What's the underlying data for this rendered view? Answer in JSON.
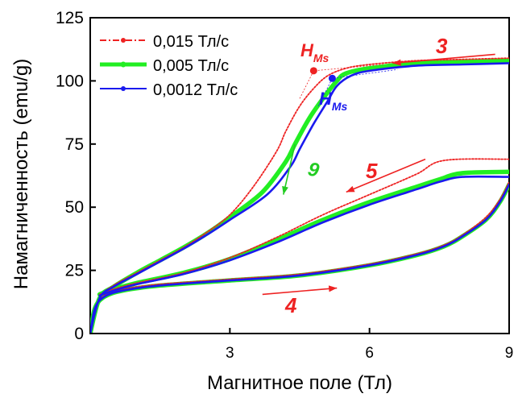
{
  "chart_data": {
    "type": "line",
    "title": "",
    "xlabel": "Магнитное поле (Тл)",
    "ylabel": "Намагниченность (emu/g)",
    "xlim": [
      0,
      9
    ],
    "ylim": [
      0,
      125
    ],
    "xticks": [
      3,
      6,
      9
    ],
    "yticks": [
      0,
      25,
      50,
      75,
      100,
      125
    ],
    "xtick_labels": [
      "3",
      "6",
      "9"
    ],
    "ytick_labels": [
      "0",
      "25",
      "50",
      "75",
      "100",
      "125"
    ],
    "grid": false,
    "legend_position": "top-left",
    "series": [
      {
        "name": "0,015 Тл/с",
        "color": "#ee2222",
        "style": "dash-dot",
        "branches": [
          {
            "label": "ascending",
            "points": [
              [
                0,
                0
              ],
              [
                0.1,
                10
              ],
              [
                0.3,
                15
              ],
              [
                0.7,
                17.5
              ],
              [
                1.5,
                19.5
              ],
              [
                3,
                21.5
              ],
              [
                4.5,
                23.5
              ],
              [
                6,
                27.5
              ],
              [
                7,
                31.5
              ],
              [
                7.6,
                35
              ],
              [
                8,
                39
              ],
              [
                8.5,
                46
              ],
              [
                8.8,
                53
              ],
              [
                9,
                60
              ]
            ]
          },
          {
            "label": "descending-upper",
            "points": [
              [
                9,
                109
              ],
              [
                8,
                108.5
              ],
              [
                7,
                108
              ],
              [
                6,
                106.5
              ],
              [
                5.5,
                105
              ],
              [
                5.1,
                102
              ],
              [
                4.8,
                97
              ],
              [
                4.5,
                90
              ],
              [
                4.2,
                80
              ],
              [
                4,
                72
              ],
              [
                3.5,
                58
              ],
              [
                3,
                47
              ],
              [
                2.5,
                40
              ],
              [
                2,
                34
              ],
              [
                1.5,
                29
              ],
              [
                1,
                24
              ],
              [
                0.5,
                19
              ],
              [
                0.2,
                14
              ],
              [
                0,
                0
              ]
            ]
          },
          {
            "label": "descending-lower",
            "points": [
              [
                9,
                69
              ],
              [
                7.6,
                68.5
              ],
              [
                7,
                63
              ],
              [
                6,
                55
              ],
              [
                5,
                47
              ],
              [
                4,
                38
              ],
              [
                3,
                30
              ],
              [
                2,
                24
              ],
              [
                1,
                20
              ],
              [
                0.5,
                17.5
              ],
              [
                0.2,
                15.5
              ]
            ]
          }
        ]
      },
      {
        "name": "0,005 Тл/с",
        "color": "#22ee22",
        "style": "thick-dotted",
        "branches": [
          {
            "label": "ascending",
            "points": [
              [
                0,
                0
              ],
              [
                0.1,
                10
              ],
              [
                0.3,
                14.5
              ],
              [
                0.7,
                17
              ],
              [
                1.5,
                19
              ],
              [
                3,
                21
              ],
              [
                4.5,
                23
              ],
              [
                6,
                27
              ],
              [
                7,
                31
              ],
              [
                7.6,
                34.5
              ],
              [
                8,
                38.5
              ],
              [
                8.5,
                45
              ],
              [
                8.8,
                52
              ],
              [
                9,
                59
              ]
            ]
          },
          {
            "label": "descending-upper",
            "points": [
              [
                9,
                108
              ],
              [
                8,
                107.5
              ],
              [
                7,
                107
              ],
              [
                6,
                105
              ],
              [
                5.5,
                103
              ],
              [
                5.3,
                100
              ],
              [
                5,
                93
              ],
              [
                4.7,
                85
              ],
              [
                4.4,
                75
              ],
              [
                4.2,
                68
              ],
              [
                3.7,
                56
              ],
              [
                3,
                46
              ],
              [
                2.5,
                39.5
              ],
              [
                2,
                34
              ],
              [
                1.5,
                29
              ],
              [
                1,
                24
              ],
              [
                0.5,
                18.5
              ],
              [
                0.2,
                14
              ],
              [
                0,
                0
              ]
            ]
          },
          {
            "label": "descending-lower",
            "points": [
              [
                9,
                64
              ],
              [
                8,
                63.5
              ],
              [
                7.5,
                61
              ],
              [
                7,
                58
              ],
              [
                6,
                52
              ],
              [
                5,
                45
              ],
              [
                4,
                37
              ],
              [
                3,
                29.5
              ],
              [
                2,
                24
              ],
              [
                1,
                20
              ],
              [
                0.5,
                17.5
              ],
              [
                0.2,
                15.5
              ]
            ]
          }
        ]
      },
      {
        "name": "0,0012 Тл/с",
        "color": "#1a1aee",
        "style": "dotted-line",
        "branches": [
          {
            "label": "ascending",
            "points": [
              [
                0,
                0
              ],
              [
                0.1,
                10
              ],
              [
                0.3,
                14.5
              ],
              [
                0.7,
                17
              ],
              [
                1.5,
                19
              ],
              [
                3,
                21
              ],
              [
                4.5,
                23
              ],
              [
                6,
                27
              ],
              [
                7,
                31
              ],
              [
                7.6,
                34.5
              ],
              [
                8,
                38.5
              ],
              [
                8.5,
                45
              ],
              [
                8.8,
                52
              ],
              [
                9,
                59
              ]
            ]
          },
          {
            "label": "descending-upper",
            "points": [
              [
                9,
                107
              ],
              [
                8,
                106.5
              ],
              [
                7,
                106
              ],
              [
                6,
                104
              ],
              [
                5.6,
                102
              ],
              [
                5.3,
                98
              ],
              [
                5.1,
                92
              ],
              [
                4.8,
                83
              ],
              [
                4.5,
                73
              ],
              [
                4.3,
                66
              ],
              [
                3.8,
                55
              ],
              [
                3,
                45
              ],
              [
                2.5,
                39
              ],
              [
                2,
                33.5
              ],
              [
                1.5,
                28.5
              ],
              [
                1,
                23.5
              ],
              [
                0.5,
                18.5
              ],
              [
                0.2,
                14
              ],
              [
                0,
                0
              ]
            ]
          },
          {
            "label": "descending-lower",
            "points": [
              [
                9,
                62
              ],
              [
                8,
                62
              ],
              [
                7.5,
                60
              ],
              [
                7,
                57
              ],
              [
                6,
                51
              ],
              [
                5,
                44
              ],
              [
                4,
                36
              ],
              [
                3,
                29
              ],
              [
                2,
                23.5
              ],
              [
                1,
                19.5
              ],
              [
                0.5,
                17
              ],
              [
                0.2,
                15
              ]
            ]
          }
        ]
      }
    ],
    "annotations": [
      {
        "text": "3",
        "color": "#ee2222"
      },
      {
        "text": "5",
        "color": "#ee2222"
      },
      {
        "text": "4",
        "color": "#ee2222"
      },
      {
        "text": "9",
        "color": "#22cc22"
      },
      {
        "text": "H",
        "sub": "Ms",
        "color": "#ee2222"
      },
      {
        "text": "H",
        "sub": "Ms",
        "color": "#1a1aee"
      }
    ],
    "markers": [
      {
        "x": 4.8,
        "y": 104,
        "color": "#ee2222"
      },
      {
        "x": 5.2,
        "y": 101,
        "color": "#1a1aee"
      }
    ],
    "arrows": [
      {
        "from": [
          8.7,
          110.5
        ],
        "to": [
          6.5,
          107
        ],
        "color": "#ee2222"
      },
      {
        "from": [
          7.2,
          69
        ],
        "to": [
          5.5,
          56
        ],
        "color": "#ee2222"
      },
      {
        "from": [
          3.7,
          15.5
        ],
        "to": [
          5.3,
          18
        ],
        "color": "#ee2222"
      },
      {
        "from": [
          4.4,
          75
        ],
        "to": [
          4.15,
          55
        ],
        "color": "#22cc22"
      }
    ]
  }
}
